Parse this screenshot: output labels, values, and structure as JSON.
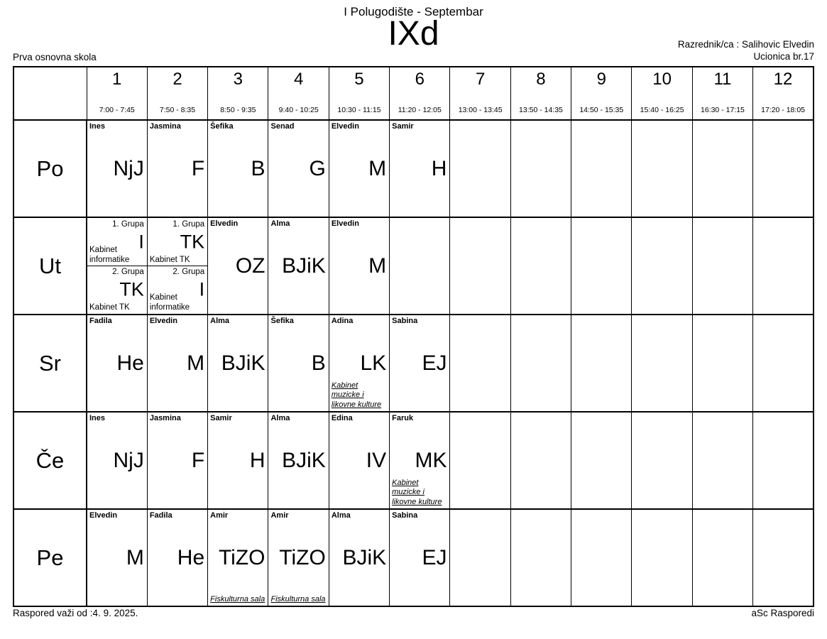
{
  "header": {
    "semester_title": "I Polugodište - Septembar",
    "class_name": "IXd",
    "homeroom_teacher": "Razrednik/ca : Salihovic Elvedin",
    "classroom": "Ucionica br.17",
    "school_name": "Prva osnovna skola"
  },
  "table": {
    "periods": [
      {
        "num": "1",
        "time": "7:00 - 7:45"
      },
      {
        "num": "2",
        "time": "7:50 - 8:35"
      },
      {
        "num": "3",
        "time": "8:50 - 9:35"
      },
      {
        "num": "4",
        "time": "9:40 - 10:25"
      },
      {
        "num": "5",
        "time": "10:30 - 11:15"
      },
      {
        "num": "6",
        "time": "11:20 - 12:05"
      },
      {
        "num": "7",
        "time": "13:00 - 13:45"
      },
      {
        "num": "8",
        "time": "13:50 - 14:35"
      },
      {
        "num": "9",
        "time": "14:50 - 15:35"
      },
      {
        "num": "10",
        "time": "15:40 - 16:25"
      },
      {
        "num": "11",
        "time": "16:30 - 17:15"
      },
      {
        "num": "12",
        "time": "17:20 - 18:05"
      }
    ],
    "rows": [
      {
        "day": "Po",
        "cells": [
          {
            "teacher": "Ines",
            "subject": "NjJ"
          },
          {
            "teacher": "Jasmina",
            "subject": "F"
          },
          {
            "teacher": "Šefika",
            "subject": "B"
          },
          {
            "teacher": "Senad",
            "subject": "G"
          },
          {
            "teacher": "Elvedin",
            "subject": "M"
          },
          {
            "teacher": "Samir",
            "subject": "H"
          },
          null,
          null,
          null,
          null,
          null,
          null
        ]
      },
      {
        "day": "Ut",
        "cells": [
          {
            "split": [
              {
                "group": "1. Grupa",
                "subject": "I",
                "room": "Kabinet informatike"
              },
              {
                "group": "2. Grupa",
                "subject": "TK",
                "room": "Kabinet TK"
              }
            ]
          },
          {
            "split": [
              {
                "group": "1. Grupa",
                "subject": "TK",
                "room": "Kabinet TK"
              },
              {
                "group": "2. Grupa",
                "subject": "I",
                "room": "Kabinet informatike"
              }
            ]
          },
          {
            "teacher": "Elvedin",
            "subject": "OZ"
          },
          {
            "teacher": "Alma",
            "subject": "BJiK"
          },
          {
            "teacher": "Elvedin",
            "subject": "M"
          },
          null,
          null,
          null,
          null,
          null,
          null,
          null
        ]
      },
      {
        "day": "Sr",
        "cells": [
          {
            "teacher": "Fadila",
            "subject": "He"
          },
          {
            "teacher": "Elvedin",
            "subject": "M"
          },
          {
            "teacher": "Alma",
            "subject": "BJiK"
          },
          {
            "teacher": "Šefika",
            "subject": "B"
          },
          {
            "teacher": "Adina",
            "subject": "LK",
            "room": "Kabinet muzicke i likovne kulture"
          },
          {
            "teacher": "Sabina",
            "subject": "EJ"
          },
          null,
          null,
          null,
          null,
          null,
          null
        ]
      },
      {
        "day": "Če",
        "cells": [
          {
            "teacher": "Ines",
            "subject": "NjJ"
          },
          {
            "teacher": "Jasmina",
            "subject": "F"
          },
          {
            "teacher": "Samir",
            "subject": "H"
          },
          {
            "teacher": "Alma",
            "subject": "BJiK"
          },
          {
            "teacher": "Edina",
            "subject": "IV"
          },
          {
            "teacher": "Faruk",
            "subject": "MK",
            "room": "Kabinet muzicke i likovne kulture"
          },
          null,
          null,
          null,
          null,
          null,
          null
        ]
      },
      {
        "day": "Pe",
        "cells": [
          {
            "teacher": "Elvedin",
            "subject": "M"
          },
          {
            "teacher": "Fadila",
            "subject": "He"
          },
          {
            "teacher": "Amir",
            "subject": "TiZO",
            "room": "Fiskulturna sala"
          },
          {
            "teacher": "Amir",
            "subject": "TiZO",
            "room": "Fiskulturna sala"
          },
          {
            "teacher": "Alma",
            "subject": "BJiK"
          },
          {
            "teacher": "Sabina",
            "subject": "EJ"
          },
          null,
          null,
          null,
          null,
          null,
          null
        ]
      }
    ]
  },
  "footer": {
    "valid_from": "Raspored važi od :4. 9. 2025.",
    "app_name": "aSc Rasporedi"
  }
}
